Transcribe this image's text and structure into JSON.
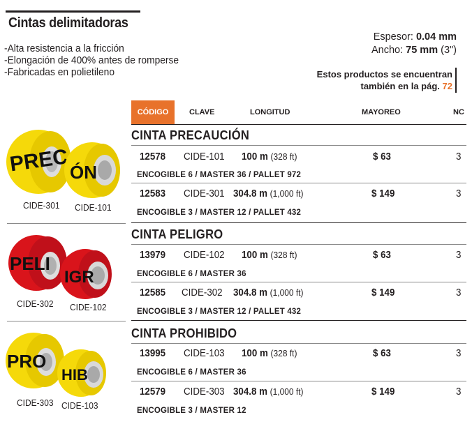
{
  "title": "Cintas delimitadoras",
  "features": [
    "-Alta resistencia a la fricción",
    "-Elongación de 400% antes de romperse",
    "-Fabricadas en polietileno"
  ],
  "specs": {
    "espesor_label": "Espesor:",
    "espesor_value": "0.04 mm",
    "ancho_label": "Ancho:",
    "ancho_value": "75 mm",
    "ancho_extra": "(3\")"
  },
  "note": {
    "line1": "Estos productos se encuentran",
    "line2": "también en la pág.",
    "page": "72"
  },
  "table_headers": {
    "codigo": "CÓDIGO",
    "clave": "CLAVE",
    "longitud": "LONGITUD",
    "mayoreo": "MAYOREO",
    "nc": "NC"
  },
  "colors": {
    "accent": "#e8722b",
    "yellow_tape": "#f5d90a",
    "red_tape": "#d9141b"
  },
  "sections": [
    {
      "title": "CINTA PRECAUCIÓN",
      "image_labels": [
        "CIDE-301",
        "CIDE-101"
      ],
      "tape_text": [
        "PREC",
        "ÓN"
      ],
      "rows": [
        {
          "codigo": "12578",
          "clave": "CIDE-101",
          "len_bold": "100 m",
          "len_rest": "(328 ft)",
          "mayoreo": "$ 63",
          "nc": "3",
          "pack": "ENCOGIBLE 6 / MASTER 36 / PALLET 972"
        },
        {
          "codigo": "12583",
          "clave": "CIDE-301",
          "len_bold": "304.8 m",
          "len_rest": "(1,000 ft)",
          "mayoreo": "$ 149",
          "nc": "3",
          "pack": "ENCOGIBLE 3 / MASTER 12 / PALLET 432"
        }
      ]
    },
    {
      "title": "CINTA PELIGRO",
      "image_labels": [
        "CIDE-302",
        "CIDE-102"
      ],
      "tape_text": [
        "PELI",
        "IGR"
      ],
      "rows": [
        {
          "codigo": "13979",
          "clave": "CIDE-102",
          "len_bold": "100 m",
          "len_rest": "(328 ft)",
          "mayoreo": "$ 63",
          "nc": "3",
          "pack": "ENCOGIBLE 6 / MASTER 36"
        },
        {
          "codigo": "12585",
          "clave": "CIDE-302",
          "len_bold": "304.8 m",
          "len_rest": "(1,000 ft)",
          "mayoreo": "$ 149",
          "nc": "3",
          "pack": "ENCOGIBLE 3 / MASTER 12 / PALLET 432"
        }
      ]
    },
    {
      "title": "CINTA PROHIBIDO",
      "image_labels": [
        "CIDE-303",
        "CIDE-103"
      ],
      "tape_text": [
        "PRO",
        "HIB"
      ],
      "rows": [
        {
          "codigo": "13995",
          "clave": "CIDE-103",
          "len_bold": "100 m",
          "len_rest": "(328 ft)",
          "mayoreo": "$ 63",
          "nc": "3",
          "pack": "ENCOGIBLE 6 / MASTER 36"
        },
        {
          "codigo": "12579",
          "clave": "CIDE-303",
          "len_bold": "304.8 m",
          "len_rest": "(1,000 ft)",
          "mayoreo": "$ 149",
          "nc": "3",
          "pack": "ENCOGIBLE 3 / MASTER 12"
        }
      ]
    }
  ]
}
